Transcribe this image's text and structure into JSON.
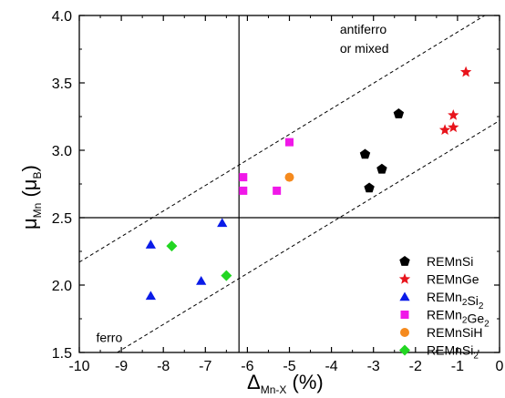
{
  "chart_data": {
    "type": "scatter",
    "xlim": [
      -10,
      0
    ],
    "ylim": [
      1.5,
      4.0
    ],
    "xticks": [
      -10,
      -9,
      -8,
      -7,
      -6,
      -5,
      -4,
      -3,
      -2,
      -1,
      0
    ],
    "yticks": [
      1.5,
      2.0,
      2.5,
      3.0,
      3.5,
      4.0
    ],
    "xticks_labels": [
      "-10",
      "-9",
      "-8",
      "-7",
      "-6",
      "-5",
      "-4",
      "-3",
      "-2",
      "-1",
      "0"
    ],
    "yticks_labels": [
      "1.5",
      "2.0",
      "2.5",
      "3.0",
      "3.5",
      "4.0"
    ],
    "xlabel": {
      "prefix": "Δ",
      "sub": "Mn-X",
      "suffix": " (%)"
    },
    "ylabel": {
      "prefix": "μ",
      "sub": "Mn",
      "open": " (μ",
      "sub2": "B",
      "close": ")"
    },
    "grid": false,
    "legend_position": "right",
    "reference_lines": {
      "vertical_x": -6.2,
      "horizontal_y": 2.5
    },
    "boundary_lines": [
      {
        "style": "dashed",
        "points": [
          [
            -10,
            2.17
          ],
          [
            -0.35,
            4.0
          ]
        ]
      },
      {
        "style": "dashed",
        "points": [
          [
            -9.1,
            1.5
          ],
          [
            0,
            3.22
          ]
        ]
      }
    ],
    "annotations": [
      {
        "lines": [
          "antiferro",
          "or mixed"
        ],
        "x": -3.8,
        "y": 3.9
      },
      {
        "lines": [
          "ferro"
        ],
        "x": -9.6,
        "y": 1.61
      }
    ],
    "series": [
      {
        "name": "REMnSi",
        "name_parts": [
          [
            "REMnSi",
            ""
          ]
        ],
        "marker": "pentagon",
        "color": "#000000",
        "points": [
          [
            -3.2,
            2.97
          ],
          [
            -3.1,
            2.72
          ],
          [
            -2.8,
            2.86
          ],
          [
            -2.4,
            3.27
          ]
        ]
      },
      {
        "name": "REMnGe",
        "name_parts": [
          [
            "REMnGe",
            ""
          ]
        ],
        "marker": "star",
        "color": "#e8141c",
        "points": [
          [
            -0.8,
            3.58
          ],
          [
            -1.1,
            3.26
          ],
          [
            -1.1,
            3.17
          ],
          [
            -1.3,
            3.15
          ]
        ]
      },
      {
        "name": "REMn2Si2",
        "name_parts": [
          [
            "REMn",
            "2"
          ],
          [
            "Si",
            "2"
          ]
        ],
        "marker": "triangle",
        "color": "#0a1be8",
        "points": [
          [
            -8.3,
            2.3
          ],
          [
            -8.3,
            1.92
          ],
          [
            -7.1,
            2.03
          ],
          [
            -6.6,
            2.46
          ]
        ]
      },
      {
        "name": "REMn2Ge2",
        "name_parts": [
          [
            "REMn",
            "2"
          ],
          [
            "Ge",
            "2"
          ]
        ],
        "marker": "square",
        "color": "#f018e8",
        "points": [
          [
            -6.1,
            2.8
          ],
          [
            -6.1,
            2.7
          ],
          [
            -5.3,
            2.7
          ],
          [
            -5.0,
            3.06
          ]
        ]
      },
      {
        "name": "REMnSiH",
        "name_parts": [
          [
            "REMnSiH",
            ""
          ]
        ],
        "marker": "circle",
        "color": "#f58a1e",
        "points": [
          [
            -5.0,
            2.8
          ]
        ]
      },
      {
        "name": "REMnSi2",
        "name_parts": [
          [
            "REMnSi",
            "2"
          ]
        ],
        "marker": "diamond",
        "color": "#22d622",
        "points": [
          [
            -7.8,
            2.29
          ],
          [
            -6.5,
            2.07
          ]
        ]
      }
    ]
  }
}
